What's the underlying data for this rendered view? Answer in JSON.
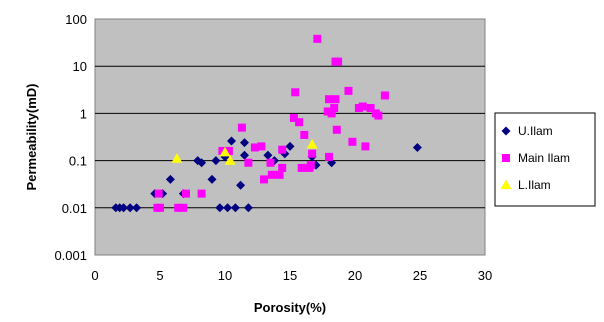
{
  "chart_data": {
    "type": "scatter",
    "xlabel": "Porosity(%)",
    "ylabel": "Permeability(mD)",
    "xlim": [
      0,
      30
    ],
    "ylim": [
      0.001,
      100
    ],
    "y_scale": "log",
    "x_ticks": [
      "0",
      "5",
      "10",
      "15",
      "20",
      "25",
      "30"
    ],
    "y_ticks": [
      "0.001",
      "0.01",
      "0.1",
      "1",
      "10",
      "100"
    ],
    "grid": "horizontal",
    "plot_background": "#c0c0c0",
    "legend_position": "right",
    "series": [
      {
        "name": "U.Ilam",
        "marker": "diamond",
        "color": "#000080",
        "points": [
          [
            1.6,
            0.01
          ],
          [
            1.9,
            0.01
          ],
          [
            2.2,
            0.01
          ],
          [
            2.7,
            0.01
          ],
          [
            3.2,
            0.01
          ],
          [
            4.6,
            0.02
          ],
          [
            5.2,
            0.02
          ],
          [
            5.8,
            0.04
          ],
          [
            6.8,
            0.02
          ],
          [
            7.9,
            0.1
          ],
          [
            8.2,
            0.09
          ],
          [
            9.0,
            0.04
          ],
          [
            9.3,
            0.1
          ],
          [
            9.6,
            0.01
          ],
          [
            10.0,
            0.12
          ],
          [
            10.2,
            0.01
          ],
          [
            10.5,
            0.26
          ],
          [
            10.8,
            0.01
          ],
          [
            11.2,
            0.03
          ],
          [
            11.5,
            0.13
          ],
          [
            11.8,
            0.01
          ],
          [
            11.5,
            0.24
          ],
          [
            13.3,
            0.13
          ],
          [
            13.8,
            0.1
          ],
          [
            14.6,
            0.14
          ],
          [
            15.0,
            0.2
          ],
          [
            16.7,
            0.12
          ],
          [
            17.0,
            0.08
          ],
          [
            18.2,
            0.09
          ],
          [
            24.8,
            0.19
          ]
        ]
      },
      {
        "name": "Main Ilam",
        "marker": "square",
        "color": "#ff00ff",
        "points": [
          [
            4.8,
            0.01
          ],
          [
            5.0,
            0.01
          ],
          [
            4.9,
            0.02
          ],
          [
            6.4,
            0.01
          ],
          [
            6.8,
            0.01
          ],
          [
            7.0,
            0.02
          ],
          [
            8.2,
            0.02
          ],
          [
            9.8,
            0.16
          ],
          [
            10.3,
            0.16
          ],
          [
            11.3,
            0.5
          ],
          [
            11.8,
            0.09
          ],
          [
            12.3,
            0.19
          ],
          [
            12.8,
            0.2
          ],
          [
            13.0,
            0.04
          ],
          [
            13.5,
            0.09
          ],
          [
            13.6,
            0.05
          ],
          [
            14.2,
            0.05
          ],
          [
            14.4,
            0.17
          ],
          [
            14.4,
            0.07
          ],
          [
            15.3,
            0.8
          ],
          [
            15.4,
            2.8
          ],
          [
            15.7,
            0.65
          ],
          [
            15.9,
            0.07
          ],
          [
            16.1,
            0.35
          ],
          [
            16.6,
            0.08
          ],
          [
            16.7,
            0.14
          ],
          [
            17.1,
            38
          ],
          [
            17.9,
            1.1
          ],
          [
            18.0,
            2.0
          ],
          [
            18.0,
            0.12
          ],
          [
            18.2,
            1.0
          ],
          [
            18.4,
            1.3
          ],
          [
            18.5,
            2.0
          ],
          [
            18.5,
            12.5
          ],
          [
            18.6,
            0.45
          ],
          [
            18.7,
            12.5
          ],
          [
            19.5,
            3.0
          ],
          [
            19.8,
            0.25
          ],
          [
            20.3,
            1.3
          ],
          [
            20.6,
            1.4
          ],
          [
            20.8,
            0.2
          ],
          [
            21.2,
            1.3
          ],
          [
            21.6,
            1.0
          ],
          [
            21.8,
            0.9
          ],
          [
            22.3,
            2.4
          ],
          [
            16.5,
            0.07
          ]
        ]
      },
      {
        "name": "L.Ilam",
        "marker": "triangle",
        "color": "#ffff00",
        "points": [
          [
            6.3,
            0.11
          ],
          [
            10.0,
            0.15
          ],
          [
            10.4,
            0.1
          ],
          [
            16.7,
            0.22
          ]
        ]
      }
    ]
  }
}
